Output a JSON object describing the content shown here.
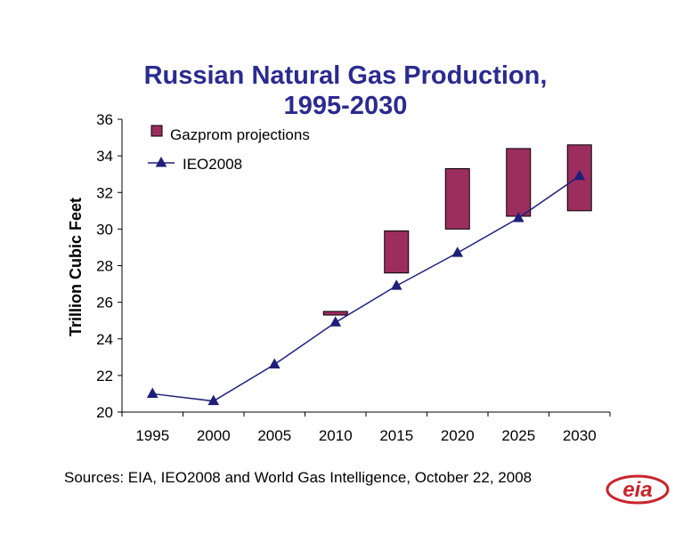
{
  "chart_data": {
    "type": "line",
    "title_line1": "Russian Natural Gas Production,",
    "title_line2": "1995-2030",
    "xlabel": "",
    "ylabel": "Trillion Cubic Feet",
    "ylim": [
      20,
      36
    ],
    "yticks": [
      20,
      22,
      24,
      26,
      28,
      30,
      32,
      34,
      36
    ],
    "categories": [
      "1995",
      "2000",
      "2005",
      "2010",
      "2015",
      "2020",
      "2025",
      "2030"
    ],
    "grid": false,
    "legend_position": "top-left",
    "series": [
      {
        "name": "IEO2008",
        "kind": "line",
        "marker": "triangle",
        "color": "#1f1f7a",
        "values": [
          21.0,
          20.6,
          22.6,
          24.9,
          26.9,
          28.7,
          30.6,
          32.9
        ]
      },
      {
        "name": "Gazprom projections",
        "kind": "range",
        "color": "#9b2d5f",
        "ranges": [
          null,
          null,
          null,
          [
            25.3,
            25.5
          ],
          [
            27.6,
            29.9
          ],
          [
            30.0,
            33.3
          ],
          [
            30.7,
            34.4
          ],
          [
            31.0,
            34.6
          ]
        ]
      }
    ]
  },
  "footer": {
    "sources": "Sources:  EIA, IEO2008 and World Gas Intelligence, October 22, 2008",
    "logo_text": "eia"
  }
}
